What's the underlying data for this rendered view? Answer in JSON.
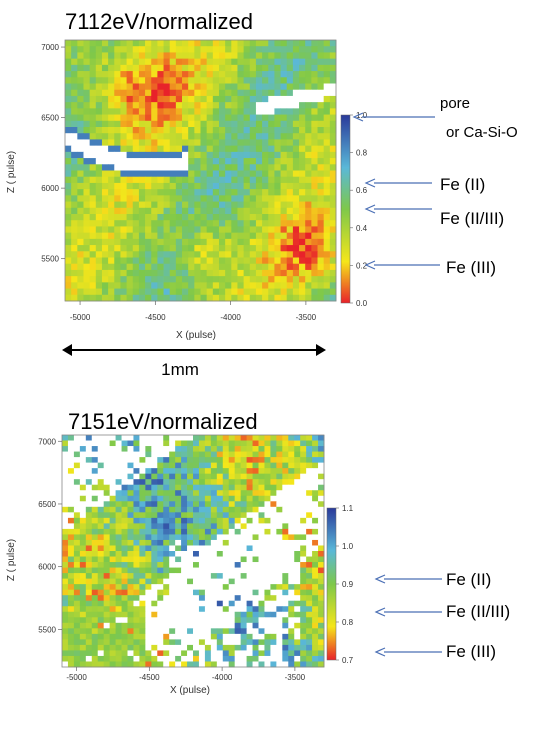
{
  "chart_data": [
    {
      "type": "heatmap",
      "title": "7112eV/normalized",
      "xlabel": "X (pulse)",
      "ylabel": "Z ( pulse)",
      "xlim": [
        -5100,
        -3300
      ],
      "ylim": [
        5200,
        7050
      ],
      "x_ticks": [
        "-5000",
        "-4500",
        "-4000",
        "-3500"
      ],
      "x_tick_values": [
        -5000,
        -4500,
        -4000,
        -3500
      ],
      "y_ticks": [
        "7000",
        "6500",
        "6000",
        "5500"
      ],
      "y_tick_values": [
        7000,
        6500,
        6000,
        5500
      ],
      "colorbar": {
        "min": 0.0,
        "max": 1.0,
        "ticks": [
          "1.0",
          "0.8",
          "0.6",
          "0.4",
          "0.2",
          "0.0"
        ],
        "tick_values": [
          1.0,
          0.8,
          0.6,
          0.4,
          0.2,
          0.0
        ]
      },
      "annotations": [
        {
          "text": "pore",
          "value": 1.0
        },
        {
          "text": "or Ca-Si-O",
          "value": 1.0
        },
        {
          "text": "Fe (II)",
          "value": 0.68
        },
        {
          "text": "Fe (II/III)",
          "value": 0.52
        },
        {
          "text": "Fe (III)",
          "value": 0.22
        }
      ],
      "scale_bar": "1mm"
    },
    {
      "type": "heatmap",
      "title": "7151eV/normalized",
      "xlabel": "X (pulse)",
      "ylabel": "Z ( pulse)",
      "xlim": [
        -5100,
        -3300
      ],
      "ylim": [
        5200,
        7050
      ],
      "x_ticks": [
        "-5000",
        "-4500",
        "-4000",
        "-3500"
      ],
      "x_tick_values": [
        -5000,
        -4500,
        -4000,
        -3500
      ],
      "y_ticks": [
        "7000",
        "6500",
        "6000",
        "5500"
      ],
      "y_tick_values": [
        7000,
        6500,
        6000,
        5500
      ],
      "colorbar": {
        "min": 0.7,
        "max": 1.1,
        "ticks": [
          "1.1",
          "1.0",
          "0.9",
          "0.8",
          "0.7"
        ],
        "tick_values": [
          1.1,
          1.0,
          0.9,
          0.8,
          0.7
        ]
      },
      "annotations": [
        {
          "text": "Fe (II)",
          "value": 0.925
        },
        {
          "text": "Fe (II/III)",
          "value": 0.88
        },
        {
          "text": "Fe (III)",
          "value": 0.72
        }
      ]
    }
  ]
}
